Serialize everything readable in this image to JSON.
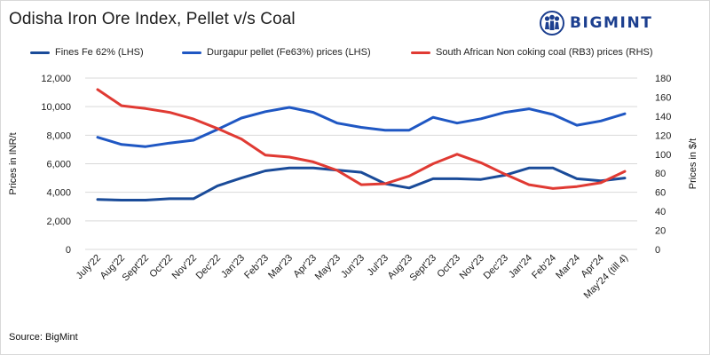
{
  "header": {
    "title": "Odisha Iron Ore Index, Pellet v/s Coal",
    "logo_text": "BIGMINT"
  },
  "footer": {
    "source": "Source: BigMint"
  },
  "colors": {
    "fines": "#1a4b99",
    "pellet": "#1f57c3",
    "coal": "#e03a33",
    "grid": "#d9d9d9",
    "logo": "#1c3f8f"
  },
  "icons": {
    "logo": "bigmint-people-icon"
  },
  "chart_data": {
    "type": "line",
    "categories": [
      "July'22",
      "Aug'22",
      "Sept'22",
      "Oct'22",
      "Nov'22",
      "Dec'22",
      "Jan'23",
      "Feb'23",
      "Mar'23",
      "Apr'23",
      "May'23",
      "Jun'23",
      "Jul'23",
      "Aug'23",
      "Sept'23",
      "Oct'23",
      "Nov'23",
      "Dec'23",
      "Jan'24",
      "Feb'24",
      "Mar'24",
      "Apr'24",
      "May'24 (till 4)"
    ],
    "y_left": {
      "label": "Prices in INR/t",
      "range": [
        0,
        12000
      ],
      "ticks": [
        "0",
        "2,000",
        "4,000",
        "6,000",
        "8,000",
        "10,000",
        "12,000"
      ],
      "tick_values": [
        0,
        2000,
        4000,
        6000,
        8000,
        10000,
        12000
      ]
    },
    "y_right": {
      "label": "Prices in $/t",
      "range": [
        0,
        180
      ],
      "ticks": [
        "0",
        "20",
        "40",
        "60",
        "80",
        "100",
        "120",
        "140",
        "160",
        "180"
      ],
      "tick_values": [
        0,
        20,
        40,
        60,
        80,
        100,
        120,
        140,
        160,
        180
      ]
    },
    "grid": true,
    "legend_position": "top",
    "series": [
      {
        "name": "Fines Fe 62% (LHS)",
        "axis": "left",
        "values": [
          3500,
          3450,
          3450,
          3550,
          3550,
          4450,
          5000,
          5500,
          5700,
          5700,
          5550,
          5400,
          4600,
          4300,
          4950,
          4950,
          4900,
          5200,
          5700,
          5700,
          4950,
          4800,
          5000
        ]
      },
      {
        "name": "Durgapur pellet (Fe63%) prices (LHS)",
        "axis": "left",
        "values": [
          7850,
          7350,
          7200,
          7450,
          7650,
          8400,
          9200,
          9650,
          9950,
          9600,
          8850,
          8550,
          8350,
          8350,
          9250,
          8850,
          9150,
          9600,
          9850,
          9450,
          8700,
          9000,
          9500
        ]
      },
      {
        "name": "South African Non coking coal (RB3) prices (RHS)",
        "axis": "right",
        "values": [
          168,
          151,
          148,
          144,
          137,
          127,
          116,
          99,
          97,
          92,
          83,
          68,
          69,
          77,
          90,
          100,
          91,
          79,
          68,
          64,
          66,
          70,
          82
        ]
      }
    ]
  }
}
